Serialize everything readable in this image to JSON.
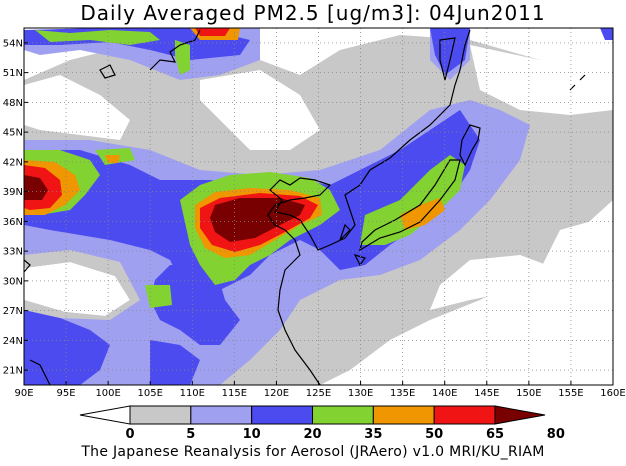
{
  "title": "Daily Averaged PM2.5 [ug/m3]: 04Jun2011",
  "footer": "The Japanese Reanalysis for Aerosol (JRAero) v1.0 MRI/KU_RIAM",
  "map": {
    "lon_range": [
      90,
      160
    ],
    "lat_range": [
      19.5,
      55.5
    ],
    "lon_ticks": [
      "90E",
      "95E",
      "100E",
      "105E",
      "110E",
      "115E",
      "120E",
      "125E",
      "130E",
      "135E",
      "140E",
      "145E",
      "150E",
      "155E",
      "160E"
    ],
    "lat_ticks": [
      "54N",
      "51N",
      "48N",
      "45N",
      "42N",
      "39N",
      "36N",
      "33N",
      "30N",
      "27N",
      "24N",
      "21N"
    ]
  },
  "colorbar": {
    "labels": [
      "0",
      "5",
      "10",
      "20",
      "35",
      "50",
      "65",
      "80"
    ],
    "colors": [
      "#ffffff",
      "#c8c8c8",
      "#a0a0f0",
      "#4b4bf0",
      "#82d232",
      "#f09600",
      "#f01414",
      "#780000"
    ]
  }
}
